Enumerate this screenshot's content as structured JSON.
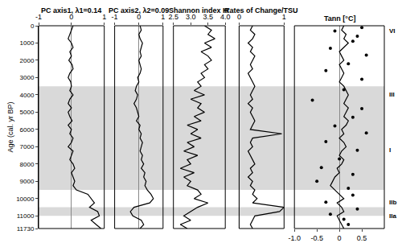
{
  "chart_data": {
    "type": "line",
    "ylabel": "Age (cal. yr BP)",
    "ylim": [
      0,
      11730
    ],
    "yticks": [
      0,
      1000,
      2000,
      3000,
      4000,
      5000,
      6000,
      7000,
      8000,
      9000,
      10000,
      11000,
      11730
    ],
    "grid": false,
    "ages": [
      0,
      250,
      500,
      750,
      1000,
      1250,
      1500,
      1750,
      2000,
      2250,
      2500,
      2750,
      3000,
      3250,
      3500,
      3750,
      4000,
      4250,
      4500,
      4750,
      5000,
      5250,
      5500,
      5750,
      6000,
      6250,
      6500,
      6750,
      7000,
      7250,
      7500,
      7750,
      8000,
      8250,
      8500,
      8750,
      9000,
      9250,
      9500,
      9750,
      10000,
      10250,
      10500,
      10750,
      11000,
      11250,
      11500,
      11730
    ],
    "bands": [
      [
        3500,
        9500
      ],
      [
        10500,
        11000
      ]
    ],
    "zones": [
      {
        "label": "VI",
        "age": 300
      },
      {
        "label": "III",
        "age": 4000
      },
      {
        "label": "I",
        "age": 7200
      },
      {
        "label": "IIb",
        "age": 10200
      },
      {
        "label": "IIa",
        "age": 11000
      }
    ],
    "panels": [
      {
        "title": "PC axis1, λ1=0.14",
        "xlim": [
          -1,
          1
        ],
        "xticks": [
          -1,
          0,
          1
        ],
        "series": [
          {
            "color": "#000000",
            "values": [
              0.05,
              0.0,
              -0.05,
              -0.1,
              0.0,
              0.05,
              -0.05,
              0.0,
              -0.08,
              0.02,
              0.05,
              -0.05,
              -0.1,
              -0.02,
              0.0,
              -0.05,
              0.05,
              -0.05,
              -0.1,
              0.0,
              -0.1,
              -0.05,
              0.02,
              -0.1,
              0.0,
              -0.05,
              0.05,
              0.0,
              -0.1,
              0.05,
              0.0,
              -0.05,
              0.05,
              0.1,
              0.0,
              0.05,
              0.1,
              0.05,
              0.15,
              0.5,
              0.6,
              0.7,
              0.55,
              0.8,
              0.85,
              0.6,
              0.75,
              0.9
            ]
          }
        ]
      },
      {
        "title": "PC axis2, λ2=0.09",
        "xlim": [
          -1,
          1
        ],
        "xticks": [
          -1,
          0,
          1
        ],
        "series": [
          {
            "color": "#000000",
            "values": [
              0.05,
              0.1,
              0.0,
              0.05,
              0.15,
              0.1,
              0.05,
              0.1,
              0.0,
              0.05,
              0.1,
              0.05,
              -0.05,
              0.0,
              -0.1,
              -0.15,
              -0.05,
              -0.1,
              -0.2,
              -0.1,
              -0.05,
              0.0,
              -0.1,
              0.05,
              0.0,
              0.1,
              0.05,
              0.15,
              0.1,
              0.05,
              0.15,
              0.1,
              0.2,
              0.1,
              0.25,
              0.2,
              0.3,
              0.25,
              0.35,
              0.5,
              0.6,
              0.45,
              -0.2,
              -0.35,
              -0.25,
              0.1,
              0.2,
              0.05
            ]
          }
        ]
      },
      {
        "title": "Shannon index H'",
        "xlim": [
          2.5,
          4.0
        ],
        "xticks": [
          {
            "value": 2.5,
            "label": "2.5"
          },
          {
            "value": 3,
            "label": "3.0"
          },
          {
            "value": 3.5,
            "label": "3.5"
          },
          {
            "value": 4,
            "label": "4.0"
          }
        ],
        "series": [
          {
            "color": "#000000",
            "values": [
              3.4,
              3.6,
              3.5,
              3.7,
              3.4,
              3.6,
              3.3,
              3.5,
              3.6,
              3.4,
              3.5,
              3.3,
              3.4,
              3.2,
              3.3,
              3.1,
              3.4,
              3.0,
              3.3,
              3.2,
              3.4,
              3.1,
              3.3,
              2.9,
              3.2,
              3.0,
              3.3,
              2.9,
              3.1,
              2.8,
              3.2,
              2.9,
              3.0,
              2.7,
              3.1,
              2.8,
              3.0,
              2.9,
              3.2,
              3.3,
              3.1,
              3.5,
              3.2,
              3.0,
              2.8,
              3.0,
              2.7,
              2.9
            ]
          }
        ]
      },
      {
        "title": "Rates of Change/TSU",
        "xlim": [
          0,
          1
        ],
        "xticks": [
          0,
          1
        ],
        "series": [
          {
            "color": "#000000",
            "values": [
              0.3,
              0.25,
              0.35,
              0.3,
              0.2,
              0.3,
              0.25,
              0.35,
              0.3,
              0.25,
              0.3,
              0.2,
              0.25,
              0.3,
              0.35,
              0.3,
              0.25,
              0.3,
              0.2,
              0.3,
              0.25,
              0.3,
              0.35,
              0.3,
              0.25,
              0.95,
              0.3,
              0.25,
              0.3,
              0.2,
              0.25,
              0.3,
              0.35,
              0.25,
              0.3,
              0.2,
              0.3,
              0.25,
              0.35,
              0.3,
              0.4,
              0.3,
              1.0,
              0.9,
              0.35,
              0.3,
              0.25,
              0.3
            ]
          }
        ]
      },
      {
        "title": "Tann [°C]",
        "xlim": [
          -1,
          1
        ],
        "xticks": [
          {
            "value": -1,
            "label": "-1.0"
          },
          {
            "value": -0.5,
            "label": "-0.5"
          },
          0,
          0.5
        ],
        "series": [
          {
            "type": "scatter",
            "marker": "circle",
            "color": "#000000",
            "age": [
              100,
              300,
              600,
              900,
              1300,
              1700,
              2200,
              2600,
              3100,
              3700,
              4300,
              4800,
              5300,
              5800,
              6200,
              6700,
              7200,
              7700,
              8200,
              8600,
              9000,
              9400,
              9800,
              10200,
              10600,
              10900,
              11200,
              11500
            ],
            "values": [
              0.5,
              -0.1,
              0.4,
              0.3,
              -0.2,
              0.6,
              0.2,
              -0.3,
              0.5,
              0.1,
              -0.6,
              0.5,
              0.3,
              -0.1,
              0.6,
              -0.3,
              0.4,
              0.0,
              -0.4,
              0.3,
              -0.5,
              0.2,
              0.3,
              -0.3,
              0.4,
              -0.2,
              0.1,
              0.2
            ]
          },
          {
            "type": "line",
            "color": "#000000",
            "values": [
              0.1,
              0.05,
              0.15,
              0.1,
              0.2,
              0.1,
              0.0,
              0.05,
              0.1,
              0.0,
              0.05,
              0.1,
              0.05,
              0.0,
              0.1,
              0.15,
              0.2,
              0.15,
              0.1,
              0.2,
              0.15,
              0.1,
              0.2,
              0.15,
              0.05,
              0.1,
              0.0,
              0.1,
              0.15,
              0.05,
              0.0,
              0.1,
              0.05,
              -0.05,
              0.0,
              -0.1,
              -0.15,
              -0.2,
              -0.1,
              0.0,
              0.1,
              -0.05,
              0.05,
              0.1,
              -0.05,
              0.0,
              0.05,
              0.1
            ]
          }
        ]
      }
    ]
  }
}
